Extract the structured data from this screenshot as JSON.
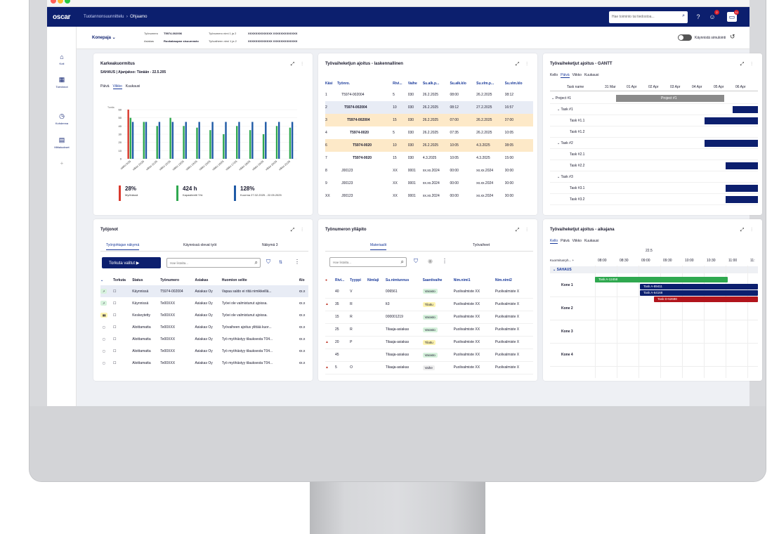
{
  "app": {
    "brand": "oscar",
    "breadcrumb": [
      "Tuotannonsuunnittelu",
      "Ohjaamo"
    ],
    "search_placeholder": "Hae toiminto tai tiedostoa...",
    "notif_count": "2",
    "msg_count": "11"
  },
  "sidebar": [
    {
      "icon": "home-icon",
      "label": "Koti"
    },
    {
      "icon": "grid-icon",
      "label": "Toiminnot"
    },
    {
      "icon": "clock-icon",
      "label": "Kohdenna"
    },
    {
      "icon": "report-icon",
      "label": "Mittaluokset"
    },
    {
      "icon": "plus-icon",
      "label": "+"
    }
  ],
  "subbar": {
    "machine": "Konepaja",
    "wo_label": "Työnumero",
    "wo_value": "T5974-002006",
    "wo_name_label": "Työnumero nimi 1 ja 2",
    "wo_name_value": "XXXXXXXXXXXXX XXXXXXXXXXXXX",
    "cust_label": "Asiakas",
    "cust_value": "Ruokakaupan sisuuerasto",
    "phase_name_label": "Työvaiheen nimi 1 ja 2",
    "phase_name_value": "XXXXXXXXXXXXX XXXXXXXXXXXXX",
    "sim_label": "Käynnistä simulointi"
  },
  "load": {
    "title": "Karkeakuormitus",
    "subtitle": "SAHAUS | Ajanjakso: Tänään - 22.5.205",
    "tabs": [
      "Päivä",
      "Viikko",
      "Kuukausi"
    ],
    "active_tab": "Viikko",
    "unit": "Tuntia",
    "kpis": [
      {
        "value": "28%",
        "label": "Myöhässä",
        "color": "#d93a2e"
      },
      {
        "value": "424 h",
        "label": "Kapasiteetti Yht.",
        "color": "#2fa84f"
      },
      {
        "value": "128%",
        "label": "Kuorma 27.02.2025 - 22.05.2025",
        "color": "#1f5aa6"
      }
    ]
  },
  "chart_data": {
    "type": "bar",
    "title": "Karkeakuormitus",
    "ylabel": "Tuntia",
    "ylim": [
      0,
      60
    ],
    "yticks": [
      0,
      10,
      20,
      30,
      40,
      50,
      60
    ],
    "categories": [
      "viikko 9/25",
      "viikko 10/25",
      "viikko 11/25",
      "viikko 12/25",
      "viikko 13/25",
      "viikko 14/25",
      "viikko 15/25",
      "viikko 16/25",
      "viikko 17/25",
      "viikko 18/25",
      "viikko 19/25",
      "viikko 20/25",
      "viikko 21/25"
    ],
    "series": [
      {
        "color": "#d93a2e",
        "values": [
          60,
          0,
          0,
          0,
          0,
          0,
          0,
          0,
          0,
          0,
          0,
          0,
          0
        ]
      },
      {
        "color": "#2fa84f",
        "values": [
          50,
          45,
          40,
          50,
          40,
          38,
          35,
          30,
          40,
          35,
          30,
          40,
          38
        ]
      },
      {
        "color": "#1f5aa6",
        "values": [
          45,
          45,
          45,
          45,
          45,
          45,
          45,
          45,
          45,
          45,
          45,
          45,
          45
        ]
      }
    ]
  },
  "calc": {
    "title": "Työvaiheketjun ajoitus - laskennallinen",
    "headers": [
      "Käsi",
      "Työnro.",
      "Rivi...",
      "Vaihe",
      "Su.alk.p...",
      "Su.alk.klo",
      "Su.vlm.p...",
      "Su.vlm.klo"
    ],
    "rows": [
      [
        "1",
        "T5974-002004",
        "5",
        "030",
        "26.2.2025",
        "08:00",
        "26.2.2025",
        "08:12"
      ],
      [
        "2",
        "T5974-002004",
        "10",
        "030",
        "26.2.2025",
        "08:12",
        "27.2.2025",
        "16:57"
      ],
      [
        "3",
        "T5974-002004",
        "15",
        "030",
        "26.2.2025",
        "07:00",
        "26.2.2025",
        "07:00"
      ],
      [
        "4",
        "T5974-0020",
        "5",
        "030",
        "26.2.2025",
        "07:35",
        "26.2.2025",
        "10:05"
      ],
      [
        "6",
        "T5974-0020",
        "10",
        "030",
        "26.2.2025",
        "10:05",
        "4.3.2025",
        "08:05"
      ],
      [
        "7",
        "T5974-0020",
        "15",
        "030",
        "4.3.2025",
        "10:05",
        "4.3.2025",
        "15:00"
      ],
      [
        "8",
        "J00123",
        "XX",
        "0001",
        "xx.xx.2024",
        "00:00",
        "xx.xx.2024",
        "00:00"
      ],
      [
        "9",
        "J00123",
        "XX",
        "0001",
        "xx.xx.2024",
        "00:00",
        "xx.xx.2024",
        "00:00"
      ],
      [
        "XX",
        "J00123",
        "XX",
        "0001",
        "xx.xx.2024",
        "00:00",
        "xx.xx.2024",
        "00:00"
      ]
    ]
  },
  "gantt": {
    "title": "Työvaiheketjut ajoitus - GANTT",
    "tabs": [
      "Kello",
      "Päivä",
      "Viikko",
      "Kuukausi"
    ],
    "active_tab": "Päivä",
    "col_task": "Task name",
    "days": [
      "31 Mar",
      "01 Apr",
      "02 Apr",
      "03 Apr",
      "04 Apr",
      "05 Apr",
      "06 Apr"
    ],
    "tasks": [
      "Project #1",
      "Task #1",
      "Task #1.1",
      "Task #1.2",
      "Task #2",
      "Task #2.1",
      "Task #2.2",
      "Task #3",
      "Task #3.1",
      "Task #3.2"
    ],
    "project_label": "Project #1"
  },
  "jobs": {
    "title": "Työjonot",
    "tabs": [
      "Työnjohtajan näkymä",
      "Käynnissä olevat työt",
      "Näkymä 3"
    ],
    "run_button": "Torkuta valitut",
    "search_placeholder": "Hae listalta...",
    "headers": [
      "Torkuta",
      "Status",
      "Työnumero",
      "Asiakas",
      "Huomion selite",
      "Alo"
    ],
    "rows": [
      [
        "Käynnissä",
        "T5974-002004",
        "Asiakas Oy",
        "Vapaa saldo ei riitä nimikkeillä...",
        "xx.x"
      ],
      [
        "Käynnissä",
        "Te00XXX",
        "Asiakas Oy",
        "Työei ole valmistunut ajoissa.",
        "xx.x"
      ],
      [
        "Keskeytetty",
        "Te00XXX",
        "Asiakas Oy",
        "Työei ole valmistunut ajoissa.",
        "xx.x"
      ],
      [
        "Aloittamatta",
        "Te00XXX",
        "Asiakas Oy",
        "Työvaiheen ajoitus ylittää kuor...",
        "xx.x"
      ],
      [
        "Aloittamatta",
        "Te00XXX",
        "Asiakas Oy",
        "Työ myöhästyy tilauksesta T04...",
        "xx.x"
      ],
      [
        "Aloittamatta",
        "Te00XXX",
        "Asiakas Oy",
        "Työ myöhästyy tilauksesta T04...",
        "xx.x"
      ],
      [
        "Aloittamatta",
        "Te00XXX",
        "Asiakas Oy",
        "Työ myöhästyy tilauksesta T04...",
        "xx.x"
      ]
    ]
  },
  "maint": {
    "title": "Työnumeron ylläpito",
    "tabs": [
      "Materiaalit",
      "Työvaiheet"
    ],
    "search_placeholder": "Hae listalta...",
    "headers": [
      "Rivi...",
      "Tyyppi",
      "Nimlaji",
      "Su.nimtunnus",
      "Saantivaihe",
      "Nim.nimi1",
      "Nim.nimi2"
    ],
    "rows": [
      [
        "40",
        "V",
        "006561",
        "Varasto",
        "Puolivalmiste XX",
        "Puolivalmiste X"
      ],
      [
        "35",
        "R",
        "It3",
        "Tilattu",
        "Puolivalmiste XX",
        "Puolivalmiste X"
      ],
      [
        "15",
        "R",
        "000001219",
        "Varasto",
        "Puolivalmiste XX",
        "Puolivalmiste X"
      ],
      [
        "25",
        "R",
        "Tilaaja-asiakas",
        "Varasto",
        "Puolivalmiste XX",
        "Puolivalmiste X"
      ],
      [
        "20",
        "P",
        "Tilaaja-asiakas",
        "Tilattu",
        "Puolivalmiste XX",
        "Puolivalmiste X"
      ],
      [
        "45",
        "",
        "Tilaaja-asiakas",
        "Varasto",
        "Puolivalmiste XX",
        "Puolivalmiste X"
      ],
      [
        "5",
        "O",
        "Tilaaja-asiakas",
        "Vaihe",
        "Puolivalmiste XX",
        "Puolivalmiste X"
      ]
    ]
  },
  "timeline": {
    "title": "Työvaiheketjut ajoitus - aikajana",
    "tabs": [
      "Kello",
      "Päivä",
      "Viikko",
      "Kuukausi"
    ],
    "active_tab": "Kello",
    "date": "22.5",
    "col": "Kuormitusryh...",
    "times": [
      "08:00",
      "08:30",
      "09:00",
      "09:30",
      "10:00",
      "10:30",
      "11:00",
      "11:"
    ],
    "group": "SAHAUS",
    "machines": [
      "Kone 1",
      "Kone 2",
      "Kone 3",
      "Kone 4"
    ],
    "bars": [
      "Task A-12458",
      "Task A-89411",
      "Task A-64168",
      "Task D-52688"
    ]
  }
}
